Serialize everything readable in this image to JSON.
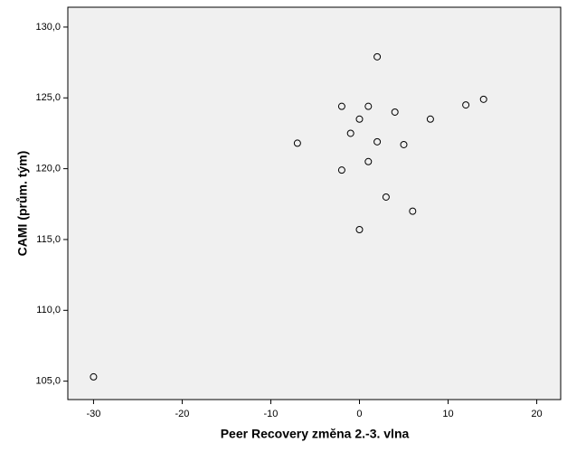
{
  "chart_data": {
    "type": "scatter",
    "x_label": "Peer Recovery změna 2.-3. vlna",
    "y_label": "CAMI (prům. tým)",
    "x": [
      2,
      -2,
      1,
      14,
      12,
      4,
      0,
      8,
      -1,
      2,
      -7,
      5,
      1,
      -2,
      3,
      6,
      0,
      -30
    ],
    "values": [
      127.9,
      124.4,
      124.4,
      124.9,
      124.5,
      124.0,
      123.5,
      123.5,
      122.5,
      121.9,
      121.8,
      121.7,
      120.5,
      119.9,
      118.0,
      117.0,
      115.7,
      105.3
    ],
    "color": "#000000",
    "background": "#f0f0f0",
    "xlim": [
      -32.9,
      22.7
    ],
    "ylim": [
      103.7,
      131.4
    ],
    "xticks": [
      -30,
      -20,
      -10,
      0,
      10,
      20
    ],
    "yticks": [
      {
        "value": 105,
        "label": "105,0"
      },
      {
        "value": 110,
        "label": "110,0"
      },
      {
        "value": 115,
        "label": "115,0"
      },
      {
        "value": 120,
        "label": "120,0"
      },
      {
        "value": 125,
        "label": "125,0"
      },
      {
        "value": 130,
        "label": "130,0"
      }
    ],
    "grid": false
  }
}
